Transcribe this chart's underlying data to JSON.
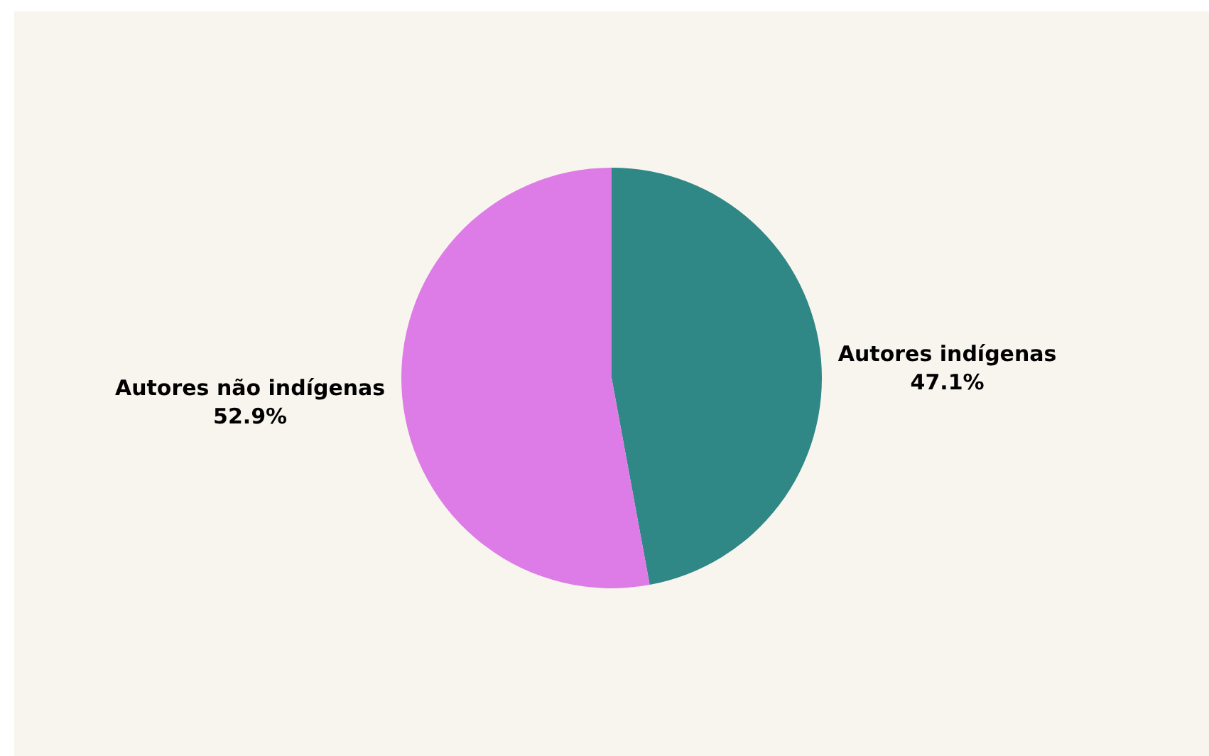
{
  "chart_data": {
    "type": "pie",
    "categories": [
      "Autores indígenas",
      "Autores não indígenas"
    ],
    "values": [
      47.1,
      52.9
    ],
    "colors": [
      "#2f8786",
      "#dd7ce6"
    ],
    "value_labels": [
      "47.1%",
      "52.9%"
    ],
    "legend": false
  }
}
